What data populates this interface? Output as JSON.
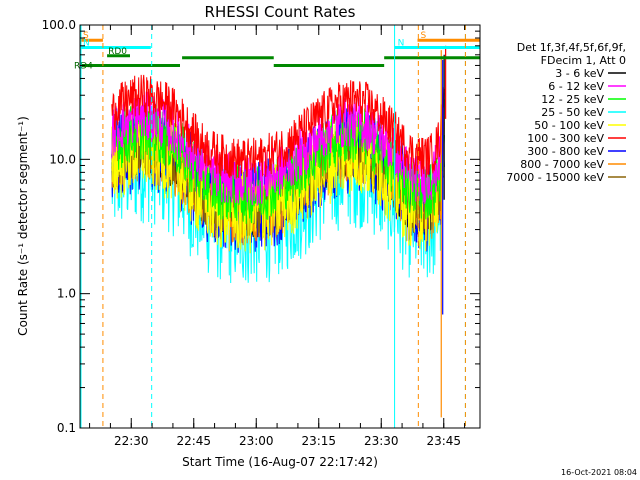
{
  "chart_data": {
    "type": "line",
    "title": "RHESSI Count Rates",
    "xlabel": "Start Time (16-Aug-07 22:17:42)",
    "ylabel": "Count Rate (s⁻¹ detector segment⁻¹)",
    "yscale": "log",
    "ylim": [
      0.1,
      100
    ],
    "xlim_minutes_after_start": [
      0,
      96
    ],
    "y_ticks": [
      "0.1",
      "1.0",
      "10.0",
      "100.0"
    ],
    "x_ticks": [
      {
        "label": "22:30",
        "minute": 12.3
      },
      {
        "label": "22:45",
        "minute": 27.3
      },
      {
        "label": "23:00",
        "minute": 42.3
      },
      {
        "label": "23:15",
        "minute": 57.3
      },
      {
        "label": "23:30",
        "minute": 72.3
      },
      {
        "label": "23:45",
        "minute": 87.3
      }
    ],
    "legend": {
      "placement": "right",
      "header": [
        "Det 1f,3f,4f,5f,6f,9f,",
        "FDecim 1, Att 0"
      ]
    },
    "series": [
      {
        "name": "3 - 6 keV",
        "color": "#000000",
        "scale": 0.37,
        "noise": 0.05
      },
      {
        "name": "6 - 12 keV",
        "color": "#ff00ff",
        "scale": 0.69,
        "noise": 0.06
      },
      {
        "name": "12 - 25 keV",
        "color": "#00ff00",
        "scale": 0.55,
        "noise": 0.07
      },
      {
        "name": "25 - 50 keV",
        "color": "#00ffff",
        "scale": 0.31,
        "noise": 0.14
      },
      {
        "name": "50 - 100 keV",
        "color": "#ffff00",
        "scale": 0.4,
        "noise": 0.1
      },
      {
        "name": "100 - 300 keV",
        "color": "#ff0000",
        "scale": 1.0,
        "noise": 0.05
      },
      {
        "name": "300 - 800 keV",
        "color": "#0000ff",
        "scale": 0.44,
        "noise": 0.11
      },
      {
        "name": "800 - 7000 keV",
        "color": "#ff8c00",
        "scale": 0.38,
        "noise": 0.07
      },
      {
        "name": "7000 - 15000 keV",
        "color": "#8b6508",
        "scale": 0.4,
        "noise": 0.06
      }
    ],
    "profile": {
      "x_minutes": [
        0,
        6.5,
        7.5,
        9,
        11,
        13,
        15,
        17,
        19,
        21,
        23,
        25,
        27,
        29,
        31,
        33,
        35,
        37,
        39,
        41,
        43,
        45,
        47,
        49,
        51,
        53,
        55,
        57,
        59,
        61,
        63,
        65,
        67,
        69,
        71,
        73,
        75,
        77,
        78.5,
        80,
        82,
        83.5,
        85,
        86.5,
        87.5
      ],
      "y_100_300_keV": [
        null,
        null,
        22,
        25,
        27,
        29,
        30,
        29.5,
        28,
        26,
        23,
        19.5,
        16,
        13.5,
        12,
        11,
        10.5,
        10.2,
        10,
        10,
        10.2,
        10.8,
        11.5,
        12.5,
        14,
        16,
        18,
        20.5,
        23,
        25.5,
        27,
        28,
        27.5,
        26,
        23,
        20,
        17,
        14,
        12,
        11,
        10.5,
        10.5,
        11.5,
        15,
        42
      ]
    },
    "annotations": [
      {
        "label": "S",
        "color": "#ff8c00",
        "y": 77,
        "x_start": 0,
        "x_end": 5.5
      },
      {
        "label": "N",
        "color": "#00ffff",
        "y": 68,
        "x_start": 0,
        "x_end": 17
      },
      {
        "label": "N",
        "color": "#00ffff",
        "y": 68,
        "x_start": 75.5,
        "x_end": 96
      },
      {
        "label": "S",
        "color": "#ff8c00",
        "y": 77,
        "x_start": 81,
        "x_end": 96
      },
      {
        "label": "RD0",
        "color": "#008800",
        "y": 59,
        "x_start": 6.5,
        "x_end": 12
      },
      {
        "label": "RD4",
        "color": "#008800",
        "y": 50,
        "x_start": 0,
        "x_end": 24
      },
      {
        "label": "",
        "color": "#008800",
        "y": 57,
        "x_start": 24.5,
        "x_end": 46.5
      },
      {
        "label": "",
        "color": "#008800",
        "y": 50,
        "x_start": 46.5,
        "x_end": 73
      },
      {
        "label": "",
        "color": "#008800",
        "y": 57,
        "x_start": 73,
        "x_end": 96
      }
    ],
    "vlines": [
      {
        "minute": 5.5,
        "color": "#ff8c00"
      },
      {
        "minute": 17.2,
        "color": "#00ffff"
      },
      {
        "minute": 75.5,
        "color": "#00ffff"
      },
      {
        "minute": 81.2,
        "color": "#ff8c00"
      },
      {
        "minute": 92.5,
        "color": "#00ffff"
      },
      {
        "minute": 92.5,
        "color": "#ff8c00"
      }
    ],
    "grid": false
  },
  "footer_timestamp": "16-Oct-2021 08:04"
}
